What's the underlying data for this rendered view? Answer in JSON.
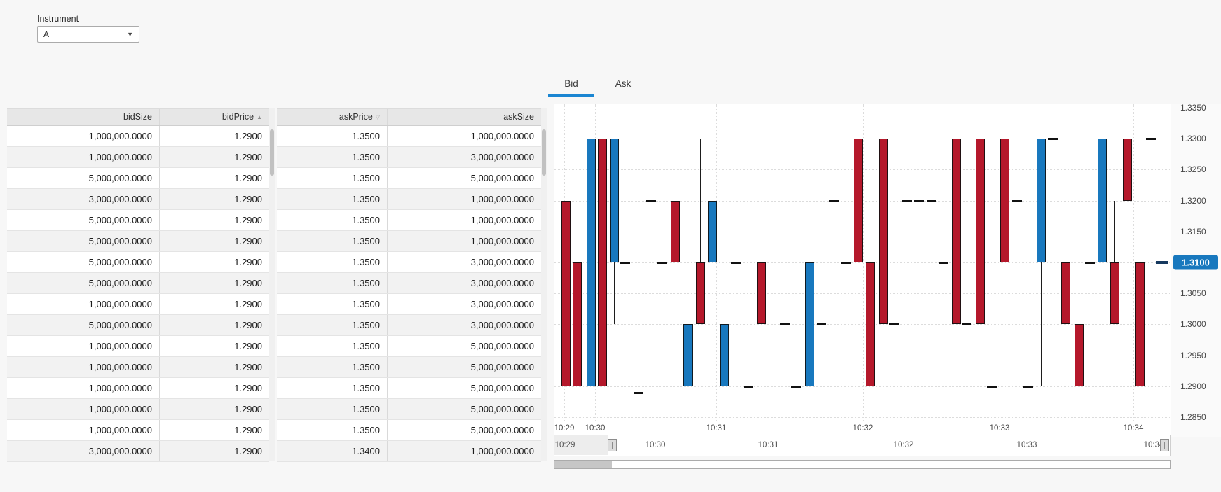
{
  "instrument_panel": {
    "label": "Instrument",
    "value": "A"
  },
  "order_book": {
    "columns": [
      {
        "key": "bidSize",
        "label": "bidSize",
        "sort": null
      },
      {
        "key": "bidPrice",
        "label": "bidPrice",
        "sort": "asc"
      },
      {
        "key": "askPrice",
        "label": "askPrice",
        "sort": "desc"
      },
      {
        "key": "askSize",
        "label": "askSize",
        "sort": null
      }
    ],
    "rows": [
      {
        "bidSize": "1,000,000.0000",
        "bidPrice": "1.2900",
        "askPrice": "1.3500",
        "askSize": "1,000,000.0000"
      },
      {
        "bidSize": "1,000,000.0000",
        "bidPrice": "1.2900",
        "askPrice": "1.3500",
        "askSize": "3,000,000.0000"
      },
      {
        "bidSize": "5,000,000.0000",
        "bidPrice": "1.2900",
        "askPrice": "1.3500",
        "askSize": "5,000,000.0000"
      },
      {
        "bidSize": "3,000,000.0000",
        "bidPrice": "1.2900",
        "askPrice": "1.3500",
        "askSize": "1,000,000.0000"
      },
      {
        "bidSize": "5,000,000.0000",
        "bidPrice": "1.2900",
        "askPrice": "1.3500",
        "askSize": "1,000,000.0000"
      },
      {
        "bidSize": "5,000,000.0000",
        "bidPrice": "1.2900",
        "askPrice": "1.3500",
        "askSize": "1,000,000.0000"
      },
      {
        "bidSize": "5,000,000.0000",
        "bidPrice": "1.2900",
        "askPrice": "1.3500",
        "askSize": "3,000,000.0000"
      },
      {
        "bidSize": "5,000,000.0000",
        "bidPrice": "1.2900",
        "askPrice": "1.3500",
        "askSize": "3,000,000.0000"
      },
      {
        "bidSize": "1,000,000.0000",
        "bidPrice": "1.2900",
        "askPrice": "1.3500",
        "askSize": "3,000,000.0000"
      },
      {
        "bidSize": "5,000,000.0000",
        "bidPrice": "1.2900",
        "askPrice": "1.3500",
        "askSize": "3,000,000.0000"
      },
      {
        "bidSize": "1,000,000.0000",
        "bidPrice": "1.2900",
        "askPrice": "1.3500",
        "askSize": "5,000,000.0000"
      },
      {
        "bidSize": "1,000,000.0000",
        "bidPrice": "1.2900",
        "askPrice": "1.3500",
        "askSize": "5,000,000.0000"
      },
      {
        "bidSize": "1,000,000.0000",
        "bidPrice": "1.2900",
        "askPrice": "1.3500",
        "askSize": "5,000,000.0000"
      },
      {
        "bidSize": "1,000,000.0000",
        "bidPrice": "1.2900",
        "askPrice": "1.3500",
        "askSize": "5,000,000.0000"
      },
      {
        "bidSize": "1,000,000.0000",
        "bidPrice": "1.2900",
        "askPrice": "1.3500",
        "askSize": "5,000,000.0000"
      },
      {
        "bidSize": "3,000,000.0000",
        "bidPrice": "1.2900",
        "askPrice": "1.3400",
        "askSize": "1,000,000.0000"
      }
    ]
  },
  "tabs": [
    {
      "label": "Bid",
      "active": true
    },
    {
      "label": "Ask",
      "active": false
    }
  ],
  "chart_data": {
    "type": "candlestick",
    "series_name": "Bid",
    "colors": {
      "up": "#1878be",
      "down": "#b5182b",
      "doji": "#121212",
      "badge": "#1878be",
      "last_dash": "#16395f"
    },
    "y_axis": {
      "top_value": 1.335,
      "bottom_value": 1.285,
      "tick_step": 0.005
    },
    "y_ticks": [
      "1.3350",
      "1.3300",
      "1.3250",
      "1.3200",
      "1.3150",
      "1.3100",
      "1.3050",
      "1.3000",
      "1.2950",
      "1.2900",
      "1.2850"
    ],
    "x_ticks": [
      {
        "label": "10:29",
        "x": 14
      },
      {
        "label": "10:30",
        "x": 58
      },
      {
        "label": "10:31",
        "x": 231
      },
      {
        "label": "10:32",
        "x": 440
      },
      {
        "label": "10:33",
        "x": 635
      },
      {
        "label": "10:34",
        "x": 826
      }
    ],
    "current_price": {
      "value": 1.31,
      "label": "1.3100"
    },
    "candles": [
      {
        "x": 16,
        "t": "down",
        "o": 1.32,
        "c": 1.29
      },
      {
        "x": 32,
        "t": "down",
        "o": 1.31,
        "c": 1.29
      },
      {
        "x": 52,
        "t": "up",
        "o": 1.29,
        "c": 1.33
      },
      {
        "x": 68,
        "t": "down",
        "o": 1.33,
        "c": 1.29
      },
      {
        "x": 85,
        "t": "up",
        "o": 1.31,
        "c": 1.33,
        "l": 1.3
      },
      {
        "x": 101,
        "t": "doji",
        "p": 1.31
      },
      {
        "x": 120,
        "t": "doji",
        "p": 1.289
      },
      {
        "x": 138,
        "t": "doji",
        "p": 1.32
      },
      {
        "x": 153,
        "t": "doji",
        "p": 1.31
      },
      {
        "x": 172,
        "t": "down",
        "o": 1.32,
        "c": 1.31
      },
      {
        "x": 190,
        "t": "up",
        "o": 1.29,
        "c": 1.3
      },
      {
        "x": 208,
        "t": "down",
        "o": 1.31,
        "c": 1.3,
        "h": 1.33
      },
      {
        "x": 225,
        "t": "up",
        "o": 1.31,
        "c": 1.32
      },
      {
        "x": 242,
        "t": "up",
        "o": 1.29,
        "c": 1.3
      },
      {
        "x": 259,
        "t": "doji",
        "p": 1.31
      },
      {
        "x": 277,
        "t": "doji",
        "p": 1.29,
        "h": 1.31
      },
      {
        "x": 295,
        "t": "down",
        "o": 1.31,
        "c": 1.3
      },
      {
        "x": 329,
        "t": "doji",
        "p": 1.3
      },
      {
        "x": 345,
        "t": "doji",
        "p": 1.29
      },
      {
        "x": 364,
        "t": "up",
        "o": 1.29,
        "c": 1.31
      },
      {
        "x": 381,
        "t": "doji",
        "p": 1.3
      },
      {
        "x": 399,
        "t": "doji",
        "p": 1.32
      },
      {
        "x": 416,
        "t": "doji",
        "p": 1.31
      },
      {
        "x": 433,
        "t": "down",
        "o": 1.33,
        "c": 1.31
      },
      {
        "x": 450,
        "t": "down",
        "o": 1.31,
        "c": 1.29
      },
      {
        "x": 469,
        "t": "down",
        "o": 1.33,
        "c": 1.3
      },
      {
        "x": 485,
        "t": "doji",
        "p": 1.3
      },
      {
        "x": 503,
        "t": "doji",
        "p": 1.32
      },
      {
        "x": 520,
        "t": "doji",
        "p": 1.32
      },
      {
        "x": 538,
        "t": "doji",
        "p": 1.32
      },
      {
        "x": 555,
        "t": "doji",
        "p": 1.31
      },
      {
        "x": 573,
        "t": "down",
        "o": 1.33,
        "c": 1.3
      },
      {
        "x": 588,
        "t": "doji",
        "p": 1.3
      },
      {
        "x": 607,
        "t": "down",
        "o": 1.33,
        "c": 1.3
      },
      {
        "x": 624,
        "t": "doji",
        "p": 1.29
      },
      {
        "x": 642,
        "t": "down",
        "o": 1.33,
        "c": 1.31
      },
      {
        "x": 660,
        "t": "doji",
        "p": 1.32
      },
      {
        "x": 676,
        "t": "doji",
        "p": 1.29
      },
      {
        "x": 694,
        "t": "up",
        "o": 1.31,
        "c": 1.33,
        "l": 1.29
      },
      {
        "x": 711,
        "t": "doji",
        "p": 1.33
      },
      {
        "x": 729,
        "t": "down",
        "o": 1.31,
        "c": 1.3
      },
      {
        "x": 748,
        "t": "down",
        "o": 1.3,
        "c": 1.29
      },
      {
        "x": 764,
        "t": "doji",
        "p": 1.31
      },
      {
        "x": 781,
        "t": "up",
        "o": 1.31,
        "c": 1.33
      },
      {
        "x": 799,
        "t": "down",
        "o": 1.31,
        "c": 1.3,
        "h": 1.32
      },
      {
        "x": 817,
        "t": "down",
        "o": 1.33,
        "c": 1.32
      },
      {
        "x": 835,
        "t": "down",
        "o": 1.31,
        "c": 1.29
      },
      {
        "x": 851,
        "t": "doji",
        "p": 1.33
      }
    ],
    "last_marker_x": 867,
    "navigator": {
      "ticks": [
        {
          "label": "10:29",
          "x": 15
        },
        {
          "label": "10:30",
          "x": 144
        },
        {
          "label": "10:31",
          "x": 305
        },
        {
          "label": "10:32",
          "x": 498
        },
        {
          "label": "10:33",
          "x": 674
        },
        {
          "label": "10:34",
          "x": 855
        }
      ],
      "handle1_x": 76,
      "handle2_x": 864,
      "scroll_fill_w": 82
    }
  }
}
